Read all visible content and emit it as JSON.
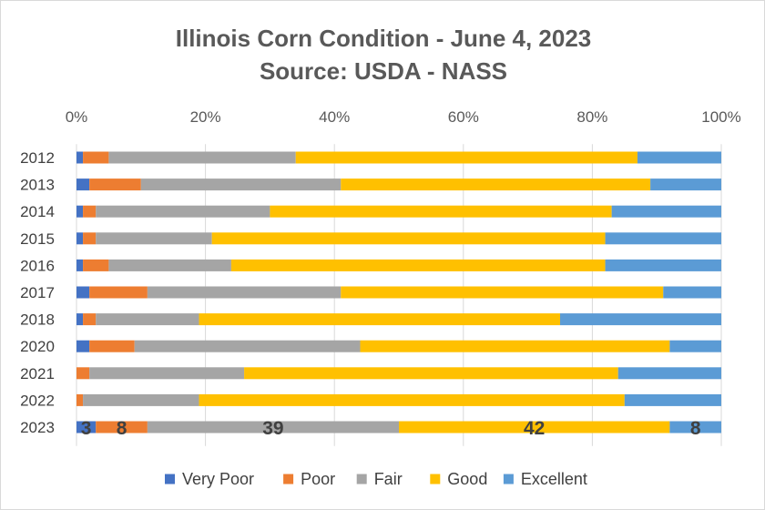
{
  "chart_data": {
    "type": "bar",
    "orientation": "horizontal",
    "stacked": true,
    "percent_stacked": true,
    "title": "Illinois Corn Condition - June 4, 2023",
    "subtitle": "Source: USDA - NASS",
    "categories": [
      "2012",
      "2013",
      "2014",
      "2015",
      "2016",
      "2017",
      "2018",
      "2020",
      "2021",
      "2022",
      "2023"
    ],
    "series": [
      {
        "name": "Very Poor",
        "color": "#4472c4",
        "values": [
          1,
          2,
          1,
          1,
          1,
          2,
          1,
          2,
          0,
          0,
          3
        ]
      },
      {
        "name": "Poor",
        "color": "#ed7d31",
        "values": [
          4,
          8,
          2,
          2,
          4,
          9,
          2,
          7,
          2,
          1,
          8
        ]
      },
      {
        "name": "Fair",
        "color": "#a5a5a5",
        "values": [
          29,
          31,
          27,
          18,
          19,
          30,
          16,
          35,
          24,
          18,
          39
        ]
      },
      {
        "name": "Good",
        "color": "#ffc000",
        "values": [
          53,
          48,
          53,
          61,
          58,
          50,
          56,
          48,
          58,
          66,
          42
        ]
      },
      {
        "name": "Excellent",
        "color": "#5b9bd5",
        "values": [
          13,
          11,
          17,
          18,
          18,
          9,
          25,
          8,
          16,
          15,
          8
        ]
      }
    ],
    "xlim": [
      0,
      100
    ],
    "xticks": [
      "0%",
      "20%",
      "40%",
      "60%",
      "80%",
      "100%"
    ],
    "xaxis_position": "top",
    "gridlines": true,
    "legend": "bottom",
    "data_labels": [
      {
        "category": "2023",
        "series": "Very Poor",
        "text": "3"
      },
      {
        "category": "2023",
        "series": "Poor",
        "text": "8"
      },
      {
        "category": "2023",
        "series": "Fair",
        "text": "39"
      },
      {
        "category": "2023",
        "series": "Good",
        "text": "42"
      },
      {
        "category": "2023",
        "series": "Excellent",
        "text": "8"
      }
    ]
  }
}
